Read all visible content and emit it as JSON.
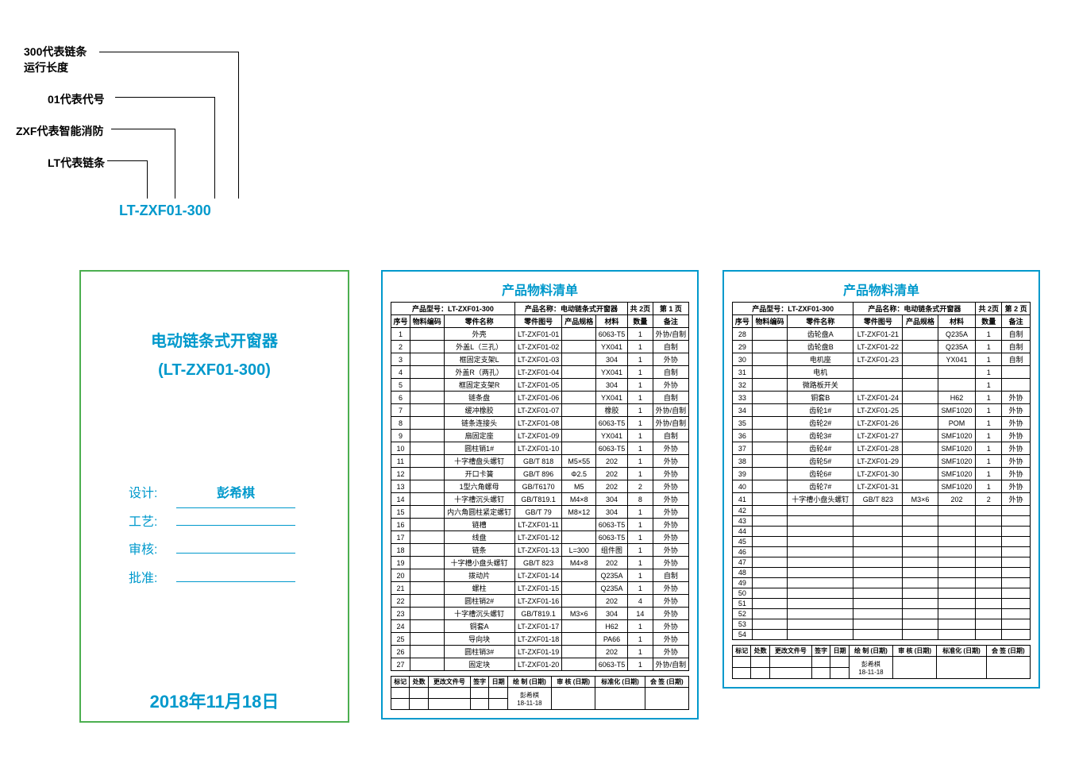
{
  "diagram": {
    "label1a": "300代表链条",
    "label1b": "运行长度",
    "label2": "01代表代号",
    "label3": "ZXF代表智能消防",
    "label4": "LT代表链条",
    "model": "LT-ZXF01-300"
  },
  "titleCard": {
    "line1": "电动链条式开窗器",
    "line2": "(LT-ZXF01-300)",
    "fields": [
      {
        "label": "设计:",
        "value": "彭希棋"
      },
      {
        "label": "工艺:",
        "value": ""
      },
      {
        "label": "审核:",
        "value": ""
      },
      {
        "label": "批准:",
        "value": ""
      }
    ],
    "date": "2018年11月18日"
  },
  "bomCommon": {
    "title": "产品物料清单",
    "metaModelLabel": "产品型号：",
    "metaModel": "LT-ZXF01-300",
    "metaNameLabel": "产品名称：",
    "metaName": "电动链条式开窗器",
    "totalPagesLabel": "共 2页",
    "headers": [
      "序号",
      "物料编码",
      "零件名称",
      "零件图号",
      "产品规格",
      "材料",
      "数量",
      "备注"
    ],
    "footerHeaders": [
      "标记",
      "处数",
      "更改文件号",
      "签字",
      "日期",
      "绘 制\n(日期)",
      "审 核\n(日期)",
      "标准化\n(日期)",
      "会 签\n(日期)"
    ],
    "footerName": "彭希棋",
    "footerDate": "18-11-18"
  },
  "bom1": {
    "pageLabel": "第 1 页",
    "rows": [
      [
        "1",
        "",
        "外壳",
        "LT-ZXF01-01",
        "",
        "6063-T5",
        "1",
        "外协/自制"
      ],
      [
        "2",
        "",
        "外盖L（三孔）",
        "LT-ZXF01-02",
        "",
        "YX041",
        "1",
        "自制"
      ],
      [
        "3",
        "",
        "框固定支架L",
        "LT-ZXF01-03",
        "",
        "304",
        "1",
        "外协"
      ],
      [
        "4",
        "",
        "外盖R（两孔）",
        "LT-ZXF01-04",
        "",
        "YX041",
        "1",
        "自制"
      ],
      [
        "5",
        "",
        "框固定支架R",
        "LT-ZXF01-05",
        "",
        "304",
        "1",
        "外协"
      ],
      [
        "6",
        "",
        "链条盘",
        "LT-ZXF01-06",
        "",
        "YX041",
        "1",
        "自制"
      ],
      [
        "7",
        "",
        "缓冲橡胶",
        "LT-ZXF01-07",
        "",
        "橡胶",
        "1",
        "外协/自制"
      ],
      [
        "8",
        "",
        "链条连接头",
        "LT-ZXF01-08",
        "",
        "6063-T5",
        "1",
        "外协/自制"
      ],
      [
        "9",
        "",
        "扇固定座",
        "LT-ZXF01-09",
        "",
        "YX041",
        "1",
        "自制"
      ],
      [
        "10",
        "",
        "圆柱销1#",
        "LT-ZXF01-10",
        "",
        "6063-T5",
        "1",
        "外协"
      ],
      [
        "11",
        "",
        "十字槽盘头螺钉",
        "GB/T 818",
        "M5×55",
        "202",
        "1",
        "外协"
      ],
      [
        "12",
        "",
        "开口卡簧",
        "GB/T 896",
        "Φ2.5",
        "202",
        "1",
        "外协"
      ],
      [
        "13",
        "",
        "1型六角螺母",
        "GB/T6170",
        "M5",
        "202",
        "2",
        "外协"
      ],
      [
        "14",
        "",
        "十字槽沉头螺钉",
        "GB/T819.1",
        "M4×8",
        "304",
        "8",
        "外协"
      ],
      [
        "15",
        "",
        "内六角圆柱紧定螺钉",
        "GB/T 79",
        "M8×12",
        "304",
        "1",
        "外协"
      ],
      [
        "16",
        "",
        "链槽",
        "LT-ZXF01-11",
        "",
        "6063-T5",
        "1",
        "外协"
      ],
      [
        "17",
        "",
        "线盘",
        "LT-ZXF01-12",
        "",
        "6063-T5",
        "1",
        "外协"
      ],
      [
        "18",
        "",
        "链条",
        "LT-ZXF01-13",
        "L=300",
        "组件图",
        "1",
        "外协"
      ],
      [
        "19",
        "",
        "十字槽小盘头螺钉",
        "GB/T 823",
        "M4×8",
        "202",
        "1",
        "外协"
      ],
      [
        "20",
        "",
        "拨动片",
        "LT-ZXF01-14",
        "",
        "Q235A",
        "1",
        "自制"
      ],
      [
        "21",
        "",
        "螺柱",
        "LT-ZXF01-15",
        "",
        "Q235A",
        "1",
        "外协"
      ],
      [
        "22",
        "",
        "圆柱销2#",
        "LT-ZXF01-16",
        "",
        "202",
        "4",
        "外协"
      ],
      [
        "23",
        "",
        "十字槽沉头螺钉",
        "GB/T819.1",
        "M3×6",
        "304",
        "14",
        "外协"
      ],
      [
        "24",
        "",
        "铜套A",
        "LT-ZXF01-17",
        "",
        "H62",
        "1",
        "外协"
      ],
      [
        "25",
        "",
        "导向块",
        "LT-ZXF01-18",
        "",
        "PA66",
        "1",
        "外协"
      ],
      [
        "26",
        "",
        "圆柱销3#",
        "LT-ZXF01-19",
        "",
        "202",
        "1",
        "外协"
      ],
      [
        "27",
        "",
        "固定块",
        "LT-ZXF01-20",
        "",
        "6063-T5",
        "1",
        "外协/自制"
      ]
    ]
  },
  "bom2": {
    "pageLabel": "第 2 页",
    "rows": [
      [
        "28",
        "",
        "齿轮盘A",
        "LT-ZXF01-21",
        "",
        "Q235A",
        "1",
        "自制"
      ],
      [
        "29",
        "",
        "齿轮盘B",
        "LT-ZXF01-22",
        "",
        "Q235A",
        "1",
        "自制"
      ],
      [
        "30",
        "",
        "电机座",
        "LT-ZXF01-23",
        "",
        "YX041",
        "1",
        "自制"
      ],
      [
        "31",
        "",
        "电机",
        "",
        "",
        "",
        "1",
        ""
      ],
      [
        "32",
        "",
        "微路板开关",
        "",
        "",
        "",
        "1",
        ""
      ],
      [
        "33",
        "",
        "铜套B",
        "LT-ZXF01-24",
        "",
        "H62",
        "1",
        "外协"
      ],
      [
        "34",
        "",
        "齿轮1#",
        "LT-ZXF01-25",
        "",
        "SMF1020",
        "1",
        "外协"
      ],
      [
        "35",
        "",
        "齿轮2#",
        "LT-ZXF01-26",
        "",
        "POM",
        "1",
        "外协"
      ],
      [
        "36",
        "",
        "齿轮3#",
        "LT-ZXF01-27",
        "",
        "SMF1020",
        "1",
        "外协"
      ],
      [
        "37",
        "",
        "齿轮4#",
        "LT-ZXF01-28",
        "",
        "SMF1020",
        "1",
        "外协"
      ],
      [
        "38",
        "",
        "齿轮5#",
        "LT-ZXF01-29",
        "",
        "SMF1020",
        "1",
        "外协"
      ],
      [
        "39",
        "",
        "齿轮6#",
        "LT-ZXF01-30",
        "",
        "SMF1020",
        "1",
        "外协"
      ],
      [
        "40",
        "",
        "齿轮7#",
        "LT-ZXF01-31",
        "",
        "SMF1020",
        "1",
        "外协"
      ],
      [
        "41",
        "",
        "十字槽小盘头螺钉",
        "GB/T 823",
        "M3×6",
        "202",
        "2",
        "外协"
      ],
      [
        "42",
        "",
        "",
        "",
        "",
        "",
        "",
        ""
      ],
      [
        "43",
        "",
        "",
        "",
        "",
        "",
        "",
        ""
      ],
      [
        "44",
        "",
        "",
        "",
        "",
        "",
        "",
        ""
      ],
      [
        "45",
        "",
        "",
        "",
        "",
        "",
        "",
        ""
      ],
      [
        "46",
        "",
        "",
        "",
        "",
        "",
        "",
        ""
      ],
      [
        "47",
        "",
        "",
        "",
        "",
        "",
        "",
        ""
      ],
      [
        "48",
        "",
        "",
        "",
        "",
        "",
        "",
        ""
      ],
      [
        "49",
        "",
        "",
        "",
        "",
        "",
        "",
        ""
      ],
      [
        "50",
        "",
        "",
        "",
        "",
        "",
        "",
        ""
      ],
      [
        "51",
        "",
        "",
        "",
        "",
        "",
        "",
        ""
      ],
      [
        "52",
        "",
        "",
        "",
        "",
        "",
        "",
        ""
      ],
      [
        "53",
        "",
        "",
        "",
        "",
        "",
        "",
        ""
      ],
      [
        "54",
        "",
        "",
        "",
        "",
        "",
        "",
        ""
      ]
    ]
  },
  "styling": {
    "accent": "#0099cc",
    "border": "#4caf50"
  }
}
